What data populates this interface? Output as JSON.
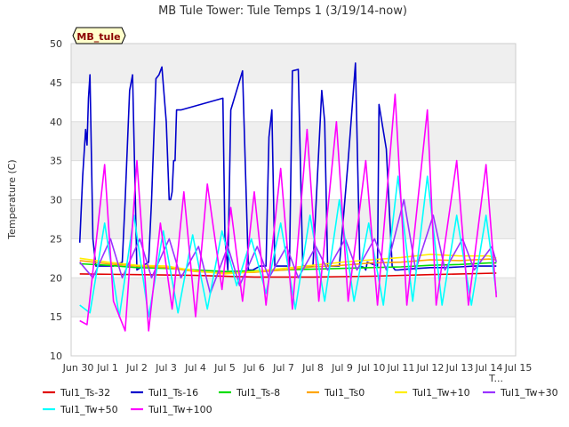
{
  "chart_data": {
    "type": "line",
    "title": "MB Tule Tower: Tule Temps 1 (3/19/14-now)",
    "badge": "MB_tule",
    "xlabel": "",
    "xlabel_partial": "T...",
    "ylabel": "Temperature (C)",
    "ylim": [
      10,
      50
    ],
    "y_ticks": [
      10,
      15,
      20,
      25,
      30,
      35,
      40,
      45,
      50
    ],
    "xlim": [
      0,
      15
    ],
    "x_ticks": [
      0,
      1,
      2,
      3,
      4,
      5,
      6,
      7,
      8,
      9,
      10,
      11,
      12,
      13,
      14,
      15
    ],
    "x_tick_labels": [
      "Jun 30",
      "Jul 1",
      "Jul 2",
      "Jul 3",
      "Jul 4",
      "Jul 5",
      "Jul 6",
      "Jul 7",
      "Jul 8",
      "Jul 9",
      "Jul 10",
      "Jul 11",
      "Jul 12",
      "Jul 13",
      "Jul 14",
      "Jul 15"
    ],
    "x_unit": "days since Jun 30",
    "grid": true,
    "background_bands": "alternating light gray",
    "legend_placement": "bottom",
    "series": [
      {
        "name": "Tul1_Ts-32",
        "color": "#e00000",
        "x": [
          0.05,
          2,
          4,
          6,
          8,
          10,
          12,
          14.25
        ],
        "y": [
          20.5,
          20.4,
          20.3,
          20.1,
          20.1,
          20.2,
          20.4,
          20.6
        ]
      },
      {
        "name": "Tul1_Ts-16",
        "color": "#0000cc",
        "x": [
          0.05,
          0.15,
          0.25,
          0.3,
          0.35,
          0.4,
          0.5,
          0.6,
          0.7,
          0.75,
          0.8,
          0.9,
          1.2,
          1.5,
          1.6,
          1.75,
          1.85,
          2.0,
          2.4,
          2.5,
          2.65,
          2.75,
          2.85,
          3.0,
          3.1,
          3.15,
          3.2,
          3.25,
          3.3,
          3.35,
          3.5,
          4.93,
          5.0,
          5.1,
          5.2,
          5.4,
          5.6,
          5.8,
          5.95,
          6.2,
          6.4,
          6.5,
          6.6,
          6.7,
          6.9,
          7.2,
          7.3,
          7.5,
          7.65,
          7.8,
          8.0,
          8.3,
          8.4,
          8.5,
          8.6,
          8.9,
          9.2,
          9.45,
          9.6,
          9.75,
          9.8,
          9.85,
          10.2,
          10.25,
          10.5,
          10.7,
          10.8,
          10.9,
          11.2,
          11.6,
          12.0,
          12.5,
          13.0,
          13.5,
          14.0,
          14.25
        ],
        "y": [
          24.5,
          33,
          39,
          37,
          43,
          46,
          25,
          21.5,
          21.5,
          21.5,
          21.5,
          21.5,
          21.5,
          22,
          30,
          44,
          46,
          21,
          22,
          30,
          45.5,
          46,
          47,
          40,
          30,
          30,
          31,
          35,
          35,
          41.5,
          41.5,
          43,
          25,
          21,
          41.5,
          44,
          46.5,
          21,
          21,
          21.5,
          21.5,
          38,
          41.5,
          21.5,
          21.5,
          21.5,
          46.5,
          46.7,
          21.5,
          21.5,
          21.5,
          44,
          40,
          21.5,
          21.5,
          21.5,
          35,
          47.5,
          21.5,
          21.3,
          21,
          22,
          21.5,
          42.2,
          36.5,
          21.5,
          21,
          21,
          21.1,
          21.2,
          21.3,
          21.3,
          21.4,
          21.5,
          21.5,
          21.5
        ]
      },
      {
        "name": "Tul1_Ts-8",
        "color": "#00dd00",
        "x": [
          0.05,
          1,
          2,
          3,
          4,
          5,
          6,
          7,
          8,
          9,
          10,
          11,
          12,
          13,
          14,
          14.25
        ],
        "y": [
          21.8,
          21.6,
          21.3,
          21.2,
          21.0,
          20.8,
          20.9,
          21.0,
          21.1,
          21.2,
          21.3,
          21.4,
          21.6,
          21.7,
          21.9,
          21.9
        ]
      },
      {
        "name": "Tul1_Ts0",
        "color": "#ffa500",
        "x": [
          0.05,
          1,
          2,
          3,
          4,
          5,
          6,
          7,
          8,
          9,
          10,
          11,
          12,
          13,
          14,
          14.25
        ],
        "y": [
          22.2,
          21.8,
          21.5,
          21.3,
          20.8,
          20.6,
          20.7,
          21.0,
          21.4,
          21.6,
          21.9,
          22.0,
          22.3,
          22.2,
          22.4,
          22.3
        ]
      },
      {
        "name": "Tul1_Tw+10",
        "color": "#ffee00",
        "x": [
          0.05,
          1,
          2,
          3,
          4,
          5,
          6,
          7,
          8,
          9,
          10,
          11,
          12,
          13,
          14,
          14.25
        ],
        "y": [
          22.5,
          22.0,
          21.6,
          21.5,
          20.9,
          20.5,
          20.8,
          21.2,
          21.6,
          22.0,
          22.3,
          22.6,
          23.0,
          22.8,
          22.8,
          22.5
        ]
      },
      {
        "name": "Tul1_Tw+30",
        "color": "#9933ff",
        "x": [
          0.05,
          0.5,
          1.1,
          1.5,
          2.1,
          2.5,
          3.1,
          3.5,
          4.1,
          4.5,
          5.1,
          5.5,
          6.1,
          6.5,
          7.1,
          7.5,
          8.1,
          8.5,
          9.1,
          9.5,
          10.1,
          10.5,
          11.1,
          11.5,
          12.1,
          12.5,
          13.1,
          13.5,
          14.1,
          14.25
        ],
        "y": [
          22,
          20,
          25,
          20,
          25,
          20,
          25,
          20,
          24,
          18,
          24,
          19,
          24,
          20,
          24,
          20,
          24,
          21,
          25,
          21,
          25,
          21,
          30,
          21,
          28,
          21,
          25,
          21,
          24,
          22
        ]
      },
      {
        "name": "Tul1_Tw+50",
        "color": "#00ffff",
        "x": [
          0.05,
          0.4,
          0.9,
          1.4,
          1.9,
          2.4,
          2.9,
          3.4,
          3.9,
          4.4,
          4.9,
          5.4,
          5.9,
          6.4,
          6.9,
          7.4,
          7.9,
          8.4,
          8.9,
          9.4,
          9.9,
          10.4,
          10.9,
          11.4,
          11.9,
          12.4,
          12.9,
          13.4,
          13.9,
          14.25
        ],
        "y": [
          16.5,
          15.5,
          27,
          15,
          28,
          15,
          26,
          15.5,
          25.5,
          16,
          26,
          19,
          25,
          18,
          27,
          16,
          28,
          17,
          30,
          17,
          27,
          16.5,
          33,
          17,
          33,
          16.5,
          28,
          16.5,
          28,
          18
        ]
      },
      {
        "name": "Tul1_Tw+100",
        "color": "#ff00ff",
        "x": [
          0.05,
          0.3,
          0.9,
          1.2,
          1.6,
          2.0,
          2.4,
          2.8,
          3.2,
          3.6,
          4.0,
          4.4,
          4.9,
          5.2,
          5.6,
          6.0,
          6.4,
          6.9,
          7.3,
          7.8,
          8.2,
          8.8,
          9.2,
          9.8,
          10.2,
          10.8,
          11.2,
          11.9,
          12.2,
          12.9,
          13.3,
          13.9,
          14.25
        ],
        "y": [
          14.5,
          14,
          34.5,
          17,
          13.2,
          35,
          13.2,
          27,
          16,
          31,
          15,
          32,
          18.5,
          29,
          17,
          31,
          16.5,
          34,
          16,
          39,
          17,
          40,
          17,
          35,
          16.5,
          43.5,
          16.5,
          41.5,
          16.5,
          35,
          16.5,
          34.5,
          17.5
        ]
      }
    ]
  }
}
